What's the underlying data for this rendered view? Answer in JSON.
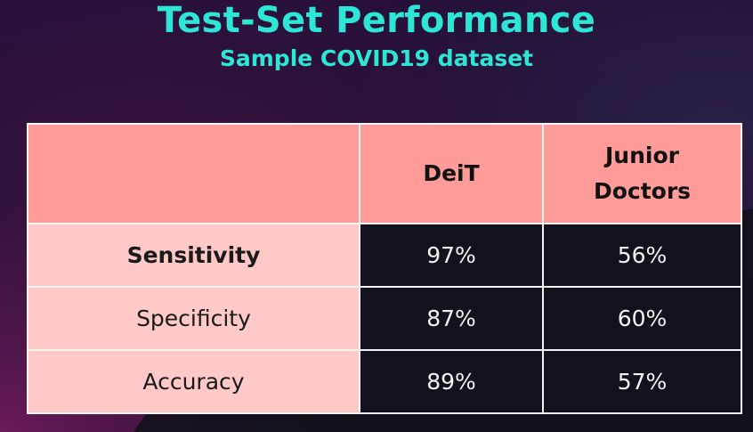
{
  "slide": {
    "title": "Test-Set Performance",
    "subtitle": "Sample COVID19 dataset"
  },
  "table": {
    "columns": [
      "",
      "DeiT",
      "Junior Doctors"
    ],
    "rows": [
      {
        "metric": "Sensitivity",
        "deit": "97%",
        "junior_doctors": "56%"
      },
      {
        "metric": "Specificity",
        "deit": "87%",
        "junior_doctors": "60%"
      },
      {
        "metric": "Accuracy",
        "deit": "89%",
        "junior_doctors": "57%"
      }
    ]
  },
  "colors": {
    "title": "#2ee6d6",
    "header_fill": "#ff9b98",
    "row_label_fill": "#ffc9c7",
    "value_fill": "#12111c"
  }
}
